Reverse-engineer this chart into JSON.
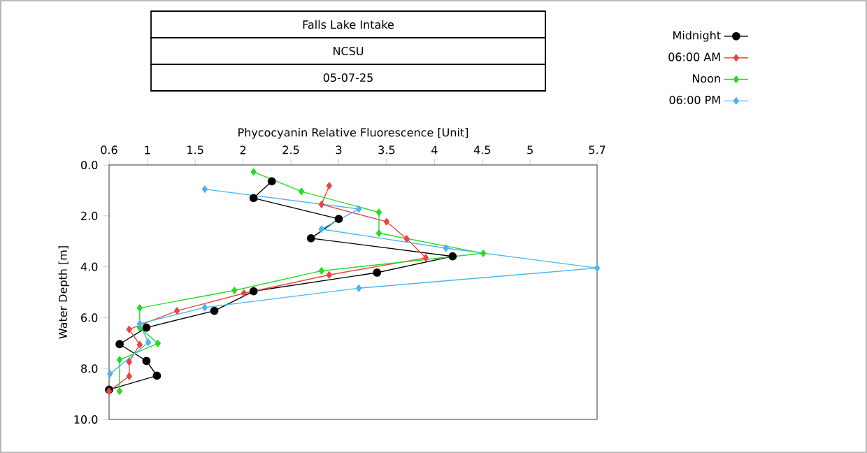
{
  "chart_data": {
    "type": "line",
    "title": "Falls Lake Intake",
    "subtitle": "NCSU",
    "annotations": [
      "05-07-25"
    ],
    "xlabel": "Phycocyanin Relative Fluorescence [Unit]",
    "ylabel": "Water Depth [m]",
    "xlim": [
      0.6,
      5.7
    ],
    "xticks": [
      0.6,
      1,
      1.5,
      2,
      2.5,
      3,
      3.5,
      4,
      4.5,
      5,
      5.7
    ],
    "ylim": [
      10,
      0
    ],
    "yticks": [
      {
        "value": 0,
        "label": "0.0"
      },
      {
        "value": 2,
        "label": "2.0"
      },
      {
        "value": 4,
        "label": "4.0"
      },
      {
        "value": 6,
        "label": "6.0"
      },
      {
        "value": 8,
        "label": "8.0"
      },
      {
        "value": 10,
        "label": "10.0"
      }
    ],
    "grid": false,
    "legend": "top right",
    "line_style": "solid",
    "series": [
      {
        "name": "Midnight",
        "color": "#000000",
        "marker": "circle",
        "x": [
          2.3,
          2.11,
          3.0,
          2.71,
          4.19,
          3.4,
          2.11,
          1.7,
          0.99,
          0.71,
          0.99,
          1.1,
          0.6
        ],
        "values": [
          0.64,
          1.3,
          2.12,
          2.88,
          3.59,
          4.23,
          4.96,
          5.73,
          6.39,
          7.04,
          7.7,
          8.28,
          8.83
        ]
      },
      {
        "name": "06:00 AM",
        "color": "#e8463e",
        "marker": "diamond",
        "x": [
          2.9,
          2.82,
          3.5,
          3.71,
          3.91,
          2.9,
          2.01,
          1.31,
          0.81,
          0.92,
          0.81,
          0.81,
          0.6
        ],
        "values": [
          0.82,
          1.55,
          2.23,
          2.9,
          3.65,
          4.32,
          5.04,
          5.73,
          6.46,
          7.06,
          7.74,
          8.3,
          8.89
        ]
      },
      {
        "name": "Noon",
        "color": "#22dd22",
        "marker": "diamond",
        "x": [
          2.11,
          2.61,
          3.42,
          3.42,
          4.51,
          2.82,
          1.91,
          0.92,
          0.92,
          1.11,
          0.71,
          0.71
        ],
        "values": [
          0.27,
          1.04,
          1.86,
          2.68,
          3.47,
          4.16,
          4.93,
          5.62,
          6.39,
          7.01,
          7.66,
          8.89
        ]
      },
      {
        "name": "06:00 PM",
        "color": "#4cb5f0",
        "marker": "diamond",
        "x": [
          1.6,
          3.21,
          2.82,
          4.12,
          5.7,
          3.21,
          1.6,
          0.92,
          1.01,
          0.61
        ],
        "values": [
          0.95,
          1.73,
          2.52,
          3.27,
          4.05,
          4.84,
          5.6,
          6.24,
          6.97,
          8.21
        ]
      }
    ]
  }
}
